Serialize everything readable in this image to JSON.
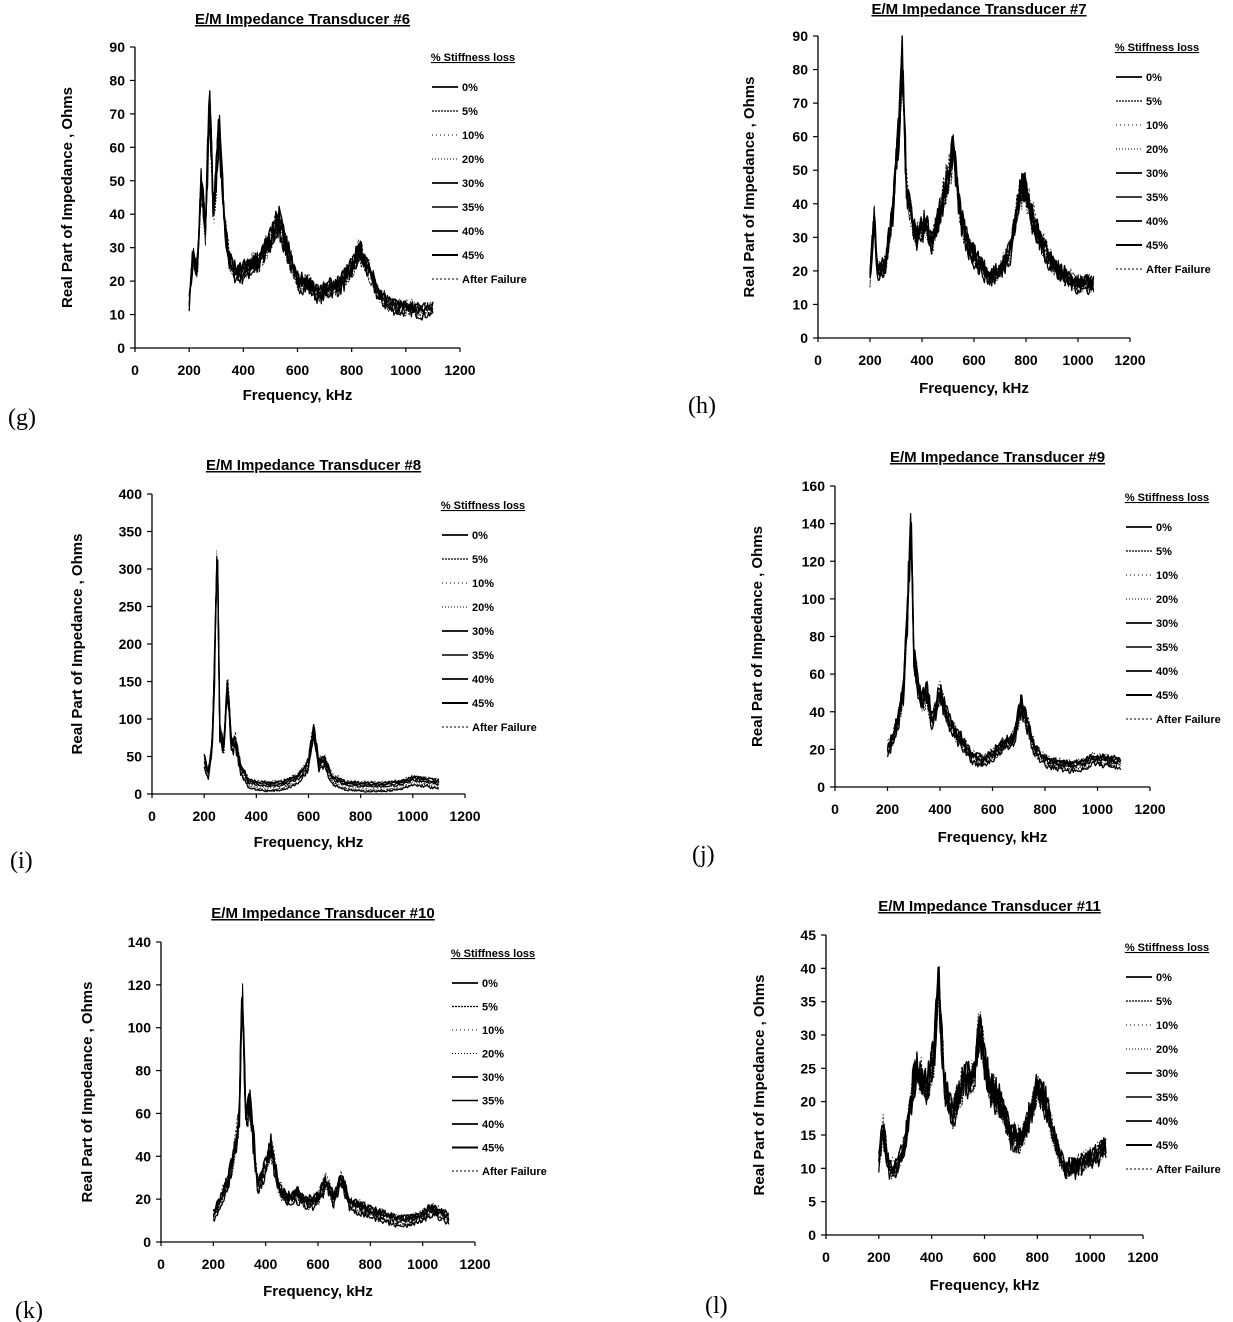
{
  "chart_data": [
    {
      "id": "g",
      "type": "line",
      "panel_label": "(g)",
      "title": "E/M Impedance Transducer #6",
      "xlabel": "Frequency, kHz",
      "ylabel": "Real Part of Impedance , Ohms",
      "xlim": [
        0,
        1200
      ],
      "ylim": [
        0,
        90
      ],
      "xticks": [
        0,
        200,
        400,
        600,
        800,
        1000,
        1200
      ],
      "yticks": [
        0,
        10,
        20,
        30,
        40,
        50,
        60,
        70,
        80,
        90
      ],
      "legend_title": "% Stiffness loss",
      "legend_position": "right",
      "series_names": [
        "0%",
        "5%",
        "10%",
        "20%",
        "30%",
        "35%",
        "40%",
        "45%",
        "After Failure"
      ],
      "envelope": {
        "x": [
          200,
          215,
          230,
          245,
          260,
          275,
          290,
          310,
          330,
          350,
          380,
          420,
          460,
          500,
          530,
          560,
          600,
          640,
          680,
          720,
          760,
          800,
          830,
          860,
          900,
          940,
          980,
          1020,
          1060,
          1100
        ],
        "y": [
          14,
          28,
          22,
          50,
          35,
          73,
          40,
          65,
          38,
          25,
          22,
          24,
          26,
          32,
          38,
          30,
          20,
          19,
          16,
          18,
          19,
          24,
          29,
          24,
          16,
          13,
          12,
          12,
          11,
          12
        ]
      }
    },
    {
      "id": "h",
      "type": "line",
      "panel_label": "(h)",
      "title": "E/M Impedance Transducer #7",
      "xlabel": "Frequency, kHz",
      "ylabel": "Real Part of Impedance , Ohms",
      "xlim": [
        0,
        1200
      ],
      "ylim": [
        0,
        90
      ],
      "xticks": [
        0,
        200,
        400,
        600,
        800,
        1000,
        1200
      ],
      "yticks": [
        0,
        10,
        20,
        30,
        40,
        50,
        60,
        70,
        80,
        90
      ],
      "legend_title": "% Stiffness loss",
      "legend_position": "right",
      "series_names": [
        "0%",
        "5%",
        "10%",
        "20%",
        "30%",
        "35%",
        "40%",
        "45%",
        "After Failure"
      ],
      "envelope": {
        "x": [
          200,
          215,
          230,
          260,
          290,
          310,
          325,
          340,
          360,
          380,
          410,
          440,
          470,
          500,
          520,
          550,
          580,
          620,
          660,
          700,
          740,
          770,
          790,
          810,
          840,
          880,
          920,
          960,
          1000,
          1060
        ],
        "y": [
          18,
          36,
          19,
          22,
          40,
          62,
          82,
          45,
          35,
          30,
          34,
          28,
          38,
          48,
          55,
          35,
          27,
          22,
          18,
          20,
          26,
          40,
          46,
          40,
          32,
          25,
          20,
          18,
          16,
          16
        ]
      }
    },
    {
      "id": "i",
      "type": "line",
      "panel_label": "(i)",
      "title": "E/M Impedance Transducer #8",
      "xlabel": "Frequency, kHz",
      "ylabel": "Real Part of Impedance , Ohms",
      "xlim": [
        0,
        1200
      ],
      "ylim": [
        0,
        400
      ],
      "xticks": [
        0,
        200,
        400,
        600,
        800,
        1000,
        1200
      ],
      "yticks": [
        0,
        50,
        100,
        150,
        200,
        250,
        300,
        350,
        400
      ],
      "legend_title": "% Stiffness loss",
      "legend_position": "right",
      "series_names": [
        "0%",
        "5%",
        "10%",
        "20%",
        "30%",
        "35%",
        "40%",
        "45%",
        "After Failure"
      ],
      "envelope": {
        "x": [
          200,
          215,
          230,
          240,
          250,
          260,
          275,
          290,
          305,
          320,
          340,
          370,
          400,
          450,
          500,
          560,
          600,
          620,
          640,
          660,
          690,
          740,
          800,
          880,
          950,
          1000,
          1040,
          1100
        ],
        "y": [
          45,
          25,
          60,
          170,
          340,
          80,
          60,
          150,
          60,
          70,
          35,
          15,
          12,
          10,
          12,
          20,
          40,
          90,
          40,
          45,
          20,
          12,
          10,
          10,
          12,
          18,
          17,
          13
        ]
      }
    },
    {
      "id": "j",
      "type": "line",
      "panel_label": "(j)",
      "title": "E/M Impedance Transducer #9",
      "xlabel": "Frequency, kHz",
      "ylabel": "Real Part of Impedance , Ohms",
      "xlim": [
        0,
        1200
      ],
      "ylim": [
        0,
        160
      ],
      "xticks": [
        0,
        200,
        400,
        600,
        800,
        1000,
        1200
      ],
      "yticks": [
        0,
        20,
        40,
        60,
        80,
        100,
        120,
        140,
        160
      ],
      "legend_title": "% Stiffness loss",
      "legend_position": "right",
      "series_names": [
        "0%",
        "5%",
        "10%",
        "20%",
        "30%",
        "35%",
        "40%",
        "45%",
        "After Failure"
      ],
      "envelope": {
        "x": [
          200,
          220,
          240,
          260,
          275,
          290,
          300,
          310,
          330,
          350,
          370,
          400,
          420,
          450,
          480,
          520,
          560,
          600,
          640,
          680,
          710,
          730,
          760,
          800,
          850,
          900,
          950,
          980,
          1030,
          1090
        ],
        "y": [
          20,
          25,
          35,
          50,
          90,
          140,
          70,
          60,
          45,
          50,
          35,
          50,
          40,
          30,
          25,
          16,
          14,
          17,
          22,
          25,
          44,
          35,
          20,
          14,
          12,
          11,
          12,
          15,
          14,
          13
        ]
      }
    },
    {
      "id": "k",
      "type": "line",
      "panel_label": "(k)",
      "title": "E/M Impedance Transducer #10",
      "xlabel": "Frequency, kHz",
      "ylabel": "Real Part of Impedance , Ohms",
      "xlim": [
        0,
        1200
      ],
      "ylim": [
        0,
        140
      ],
      "xticks": [
        0,
        200,
        400,
        600,
        800,
        1000,
        1200
      ],
      "yticks": [
        0,
        20,
        40,
        60,
        80,
        100,
        120,
        140
      ],
      "legend_title": "% Stiffness loss",
      "legend_position": "right",
      "series_names": [
        "0%",
        "5%",
        "10%",
        "20%",
        "30%",
        "35%",
        "40%",
        "45%",
        "After Failure"
      ],
      "envelope": {
        "x": [
          200,
          230,
          260,
          285,
          300,
          310,
          325,
          340,
          370,
          400,
          420,
          450,
          480,
          520,
          560,
          600,
          630,
          660,
          690,
          720,
          760,
          800,
          850,
          900,
          950,
          1000,
          1030,
          1060,
          1100
        ],
        "y": [
          12,
          20,
          30,
          45,
          60,
          120,
          55,
          65,
          25,
          35,
          45,
          25,
          20,
          22,
          18,
          20,
          28,
          20,
          30,
          18,
          16,
          14,
          12,
          10,
          10,
          12,
          15,
          14,
          11
        ]
      }
    },
    {
      "id": "l",
      "type": "line",
      "panel_label": "(l)",
      "title": "E/M Impedance Transducer #11",
      "xlabel": "Frequency, kHz",
      "ylabel": "Real Part of Impedance , Ohms",
      "xlim": [
        0,
        1200
      ],
      "ylim": [
        0,
        45
      ],
      "xticks": [
        0,
        200,
        400,
        600,
        800,
        1000,
        1200
      ],
      "yticks": [
        0,
        5,
        10,
        15,
        20,
        25,
        30,
        35,
        40,
        45
      ],
      "legend_title": "% Stiffness loss",
      "legend_position": "right",
      "series_names": [
        "0%",
        "5%",
        "10%",
        "20%",
        "30%",
        "35%",
        "40%",
        "45%",
        "After Failure"
      ],
      "envelope": {
        "x": [
          200,
          215,
          240,
          270,
          300,
          340,
          380,
          410,
          425,
          450,
          480,
          520,
          560,
          580,
          620,
          660,
          700,
          740,
          780,
          800,
          830,
          860,
          900,
          940,
          980,
          1020,
          1060
        ],
        "y": [
          11,
          16,
          10,
          10,
          14,
          25,
          22,
          27,
          38,
          22,
          18,
          23,
          24,
          31,
          22,
          20,
          15,
          14,
          19,
          22,
          20,
          15,
          10,
          10,
          11,
          12,
          13
        ]
      }
    }
  ]
}
